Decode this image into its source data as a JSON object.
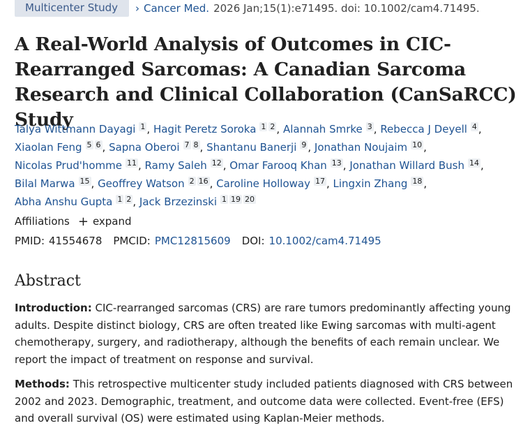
{
  "header": {
    "publication_type": "Multicenter Study",
    "journal": "Cancer Med.",
    "citation": "2026 Jan;15(1):e71495. doi: 10.1002/cam4.71495."
  },
  "title": "A Real-World Analysis of Outcomes in CIC-Rearranged Sarcomas: A Canadian Sarcoma Research and Clinical Collaboration (CanSaRCC) Study",
  "authors": [
    {
      "name": "Talya Wittmann Dayagi",
      "affils": [
        "1"
      ]
    },
    {
      "name": "Hagit Peretz Soroka",
      "affils": [
        "1",
        "2"
      ]
    },
    {
      "name": "Alannah Smrke",
      "affils": [
        "3"
      ]
    },
    {
      "name": "Rebecca J Deyell",
      "affils": [
        "4"
      ]
    },
    {
      "name": "Xiaolan Feng",
      "affils": [
        "5",
        "6"
      ]
    },
    {
      "name": "Sapna Oberoi",
      "affils": [
        "7",
        "8"
      ]
    },
    {
      "name": "Shantanu Banerji",
      "affils": [
        "9"
      ]
    },
    {
      "name": "Jonathan Noujaim",
      "affils": [
        "10"
      ]
    },
    {
      "name": "Nicolas Prud'homme",
      "affils": [
        "11"
      ]
    },
    {
      "name": "Ramy Saleh",
      "affils": [
        "12"
      ]
    },
    {
      "name": "Omar Farooq Khan",
      "affils": [
        "13"
      ]
    },
    {
      "name": "Jonathan Willard Bush",
      "affils": [
        "14"
      ]
    },
    {
      "name": "Bilal Marwa",
      "affils": [
        "15"
      ]
    },
    {
      "name": "Geoffrey Watson",
      "affils": [
        "2",
        "16"
      ]
    },
    {
      "name": "Caroline Holloway",
      "affils": [
        "17"
      ]
    },
    {
      "name": "Lingxin Zhang",
      "affils": [
        "18"
      ]
    },
    {
      "name": "Abha Anshu Gupta",
      "affils": [
        "1",
        "2"
      ]
    },
    {
      "name": "Jack Brzezinski",
      "affils": [
        "1",
        "19",
        "20"
      ]
    }
  ],
  "affiliations": {
    "label": "Affiliations",
    "expand_label": "expand",
    "expand_icon": "+"
  },
  "ids": {
    "pmid_label": "PMID:",
    "pmid": "41554678",
    "pmcid_label": "PMCID:",
    "pmcid": "PMC12815609",
    "doi_label": "DOI:",
    "doi": "10.1002/cam4.71495"
  },
  "abstract": {
    "heading": "Abstract",
    "intro_label": "Introduction:",
    "intro_text": "CIC-rearranged sarcomas (CRS) are rare tumors predominantly affecting young adults. Despite distinct biology, CRS are often treated like Ewing sarcomas with multi-agent chemotherapy, surgery, and radiotherapy, although the benefits of each remain unclear. We report the impact of treatment on response and survival.",
    "methods_label": "Methods:",
    "methods_text": "This retrospective multicenter study included patients diagnosed with CRS between 2002 and 2023. Demographic, treatment, and outcome data were collected. Event-free (EFS) and overall survival (OS) were estimated using Kaplan-Meier methods."
  }
}
